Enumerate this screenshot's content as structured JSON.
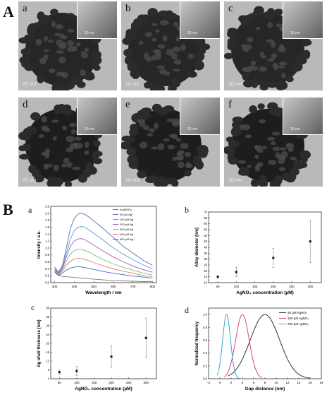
{
  "panel_A": {
    "label": "A",
    "images": [
      {
        "letter": "a",
        "scale": "20 nm",
        "inset_scale": "10 nm"
      },
      {
        "letter": "b",
        "scale": "20 nm",
        "inset_scale": "10 nm"
      },
      {
        "letter": "c",
        "scale": "20 nm",
        "inset_scale": "10 nm"
      },
      {
        "letter": "d",
        "scale": "20 nm",
        "inset_scale": "10 nm"
      },
      {
        "letter": "e",
        "scale": "20 nm",
        "inset_scale": "10 nm"
      },
      {
        "letter": "f",
        "scale": "20 nm",
        "inset_scale": "10 nm"
      }
    ]
  },
  "panel_B": {
    "label": "B",
    "sub": {
      "a": "a",
      "b": "b",
      "c": "c",
      "d": "d"
    }
  },
  "chart_data": [
    {
      "type": "line",
      "panel": "a",
      "xlabel": "Wavelength / nm",
      "ylabel": "Intensity / a.u.",
      "xlim": [
        280,
        820
      ],
      "ylim": [
        0,
        2.2
      ],
      "xticks": [
        "300",
        "400",
        "500",
        "600",
        "700",
        "800"
      ],
      "yticks": [
        "0.0",
        "0.2",
        "0.4",
        "0.6",
        "0.8",
        "1.0",
        "1.2",
        "1.4",
        "1.6",
        "1.8",
        "2.0",
        "2.2"
      ],
      "x": [
        300,
        320,
        340,
        360,
        380,
        400,
        420,
        440,
        460,
        480,
        500,
        550,
        600,
        650,
        700,
        750,
        800
      ],
      "series": [
        {
          "name": "Au@SiO₂",
          "color": "#7d7d7d",
          "values": [
            0.35,
            0.22,
            0.18,
            0.17,
            0.16,
            0.15,
            0.14,
            0.13,
            0.12,
            0.11,
            0.1,
            0.08,
            0.06,
            0.05,
            0.04,
            0.03,
            0.03
          ]
        },
        {
          "name": "50 µM Ag⁺",
          "color": "#5a6fb0",
          "values": [
            0.45,
            0.3,
            0.5,
            1.0,
            1.55,
            1.85,
            1.98,
            2.0,
            1.95,
            1.87,
            1.78,
            1.55,
            1.3,
            1.05,
            0.85,
            0.65,
            0.5
          ]
        },
        {
          "name": "100 µM Ag",
          "color": "#5b9bd5",
          "values": [
            0.4,
            0.28,
            0.45,
            0.85,
            1.25,
            1.5,
            1.6,
            1.62,
            1.58,
            1.5,
            1.42,
            1.22,
            1.0,
            0.82,
            0.66,
            0.52,
            0.4
          ]
        },
        {
          "name": "200 µM Ag",
          "color": "#b05bb0",
          "values": [
            0.38,
            0.26,
            0.42,
            0.75,
            1.05,
            1.2,
            1.26,
            1.27,
            1.22,
            1.15,
            1.08,
            0.9,
            0.74,
            0.6,
            0.48,
            0.38,
            0.3
          ]
        },
        {
          "name": "300 µM Ag",
          "color": "#7ec07e",
          "values": [
            0.35,
            0.24,
            0.38,
            0.62,
            0.82,
            0.92,
            0.96,
            0.95,
            0.92,
            0.87,
            0.8,
            0.66,
            0.54,
            0.44,
            0.36,
            0.28,
            0.22
          ]
        },
        {
          "name": "400 µM Ag",
          "color": "#e07a7a",
          "values": [
            0.32,
            0.22,
            0.34,
            0.5,
            0.62,
            0.68,
            0.7,
            0.69,
            0.66,
            0.62,
            0.58,
            0.48,
            0.4,
            0.33,
            0.27,
            0.21,
            0.17
          ]
        },
        {
          "name": "500 µM Ag⁺",
          "color": "#3a6fc0",
          "values": [
            0.3,
            0.2,
            0.28,
            0.36,
            0.42,
            0.45,
            0.46,
            0.45,
            0.43,
            0.41,
            0.38,
            0.32,
            0.27,
            0.23,
            0.19,
            0.16,
            0.13
          ]
        }
      ],
      "legend_position": "top-right"
    },
    {
      "type": "scatter",
      "panel": "b",
      "xlabel": "AgNO₃ concentration (µM)",
      "ylabel": "Alloy diameter (nm)",
      "xlim": [
        25,
        330
      ],
      "ylim": [
        10,
        70
      ],
      "xticks": [
        "50",
        "100",
        "150",
        "200",
        "250",
        "300"
      ],
      "yticks": [
        "10",
        "15",
        "20",
        "25",
        "30",
        "35",
        "40",
        "45",
        "50",
        "55",
        "60",
        "65",
        "70"
      ],
      "x": [
        50,
        100,
        200,
        300
      ],
      "y": [
        15,
        19,
        31,
        45
      ],
      "err": [
        1,
        4,
        8,
        18
      ]
    },
    {
      "type": "scatter",
      "panel": "c",
      "xlabel": "AgNO₃ concentration (µM)",
      "ylabel": "Ag shell thickness (nm)",
      "xlim": [
        25,
        330
      ],
      "ylim": [
        4,
        36
      ],
      "xticks": [
        "50",
        "100",
        "150",
        "200",
        "250",
        "300"
      ],
      "yticks": [
        "4",
        "8",
        "12",
        "16",
        "20",
        "24",
        "28",
        "32",
        "36"
      ],
      "x": [
        50,
        100,
        200,
        300
      ],
      "y": [
        7,
        7.5,
        14,
        22.5
      ],
      "err": [
        1,
        2,
        5,
        9
      ]
    },
    {
      "type": "line",
      "panel": "d",
      "xlabel": "Gap distance (nm)",
      "ylabel": "Normalized frequency",
      "xlim": [
        -2,
        18
      ],
      "ylim": [
        0,
        1.1
      ],
      "xticks": [
        "-2",
        "0",
        "2",
        "4",
        "6",
        "8",
        "10",
        "12",
        "14",
        "16",
        "18"
      ],
      "yticks": [
        "0.0",
        "0.2",
        "0.4",
        "0.6",
        "0.8",
        "1.0"
      ],
      "series": [
        {
          "name": "50 µM AgNO₃",
          "color": "#333333",
          "mean": 8,
          "sd": 2.6,
          "x_from": 1.5,
          "x_to": 16
        },
        {
          "name": "100 µM AgNO₃",
          "color": "#e0447a",
          "mean": 4,
          "sd": 1.2,
          "x_from": 0.8,
          "x_to": 7.5
        },
        {
          "name": "200 µM AgNO₃",
          "color": "#3aa8c8",
          "mean": 1.2,
          "sd": 0.7,
          "x_from": -0.5,
          "x_to": 4
        }
      ],
      "legend_position": "top-right"
    }
  ]
}
